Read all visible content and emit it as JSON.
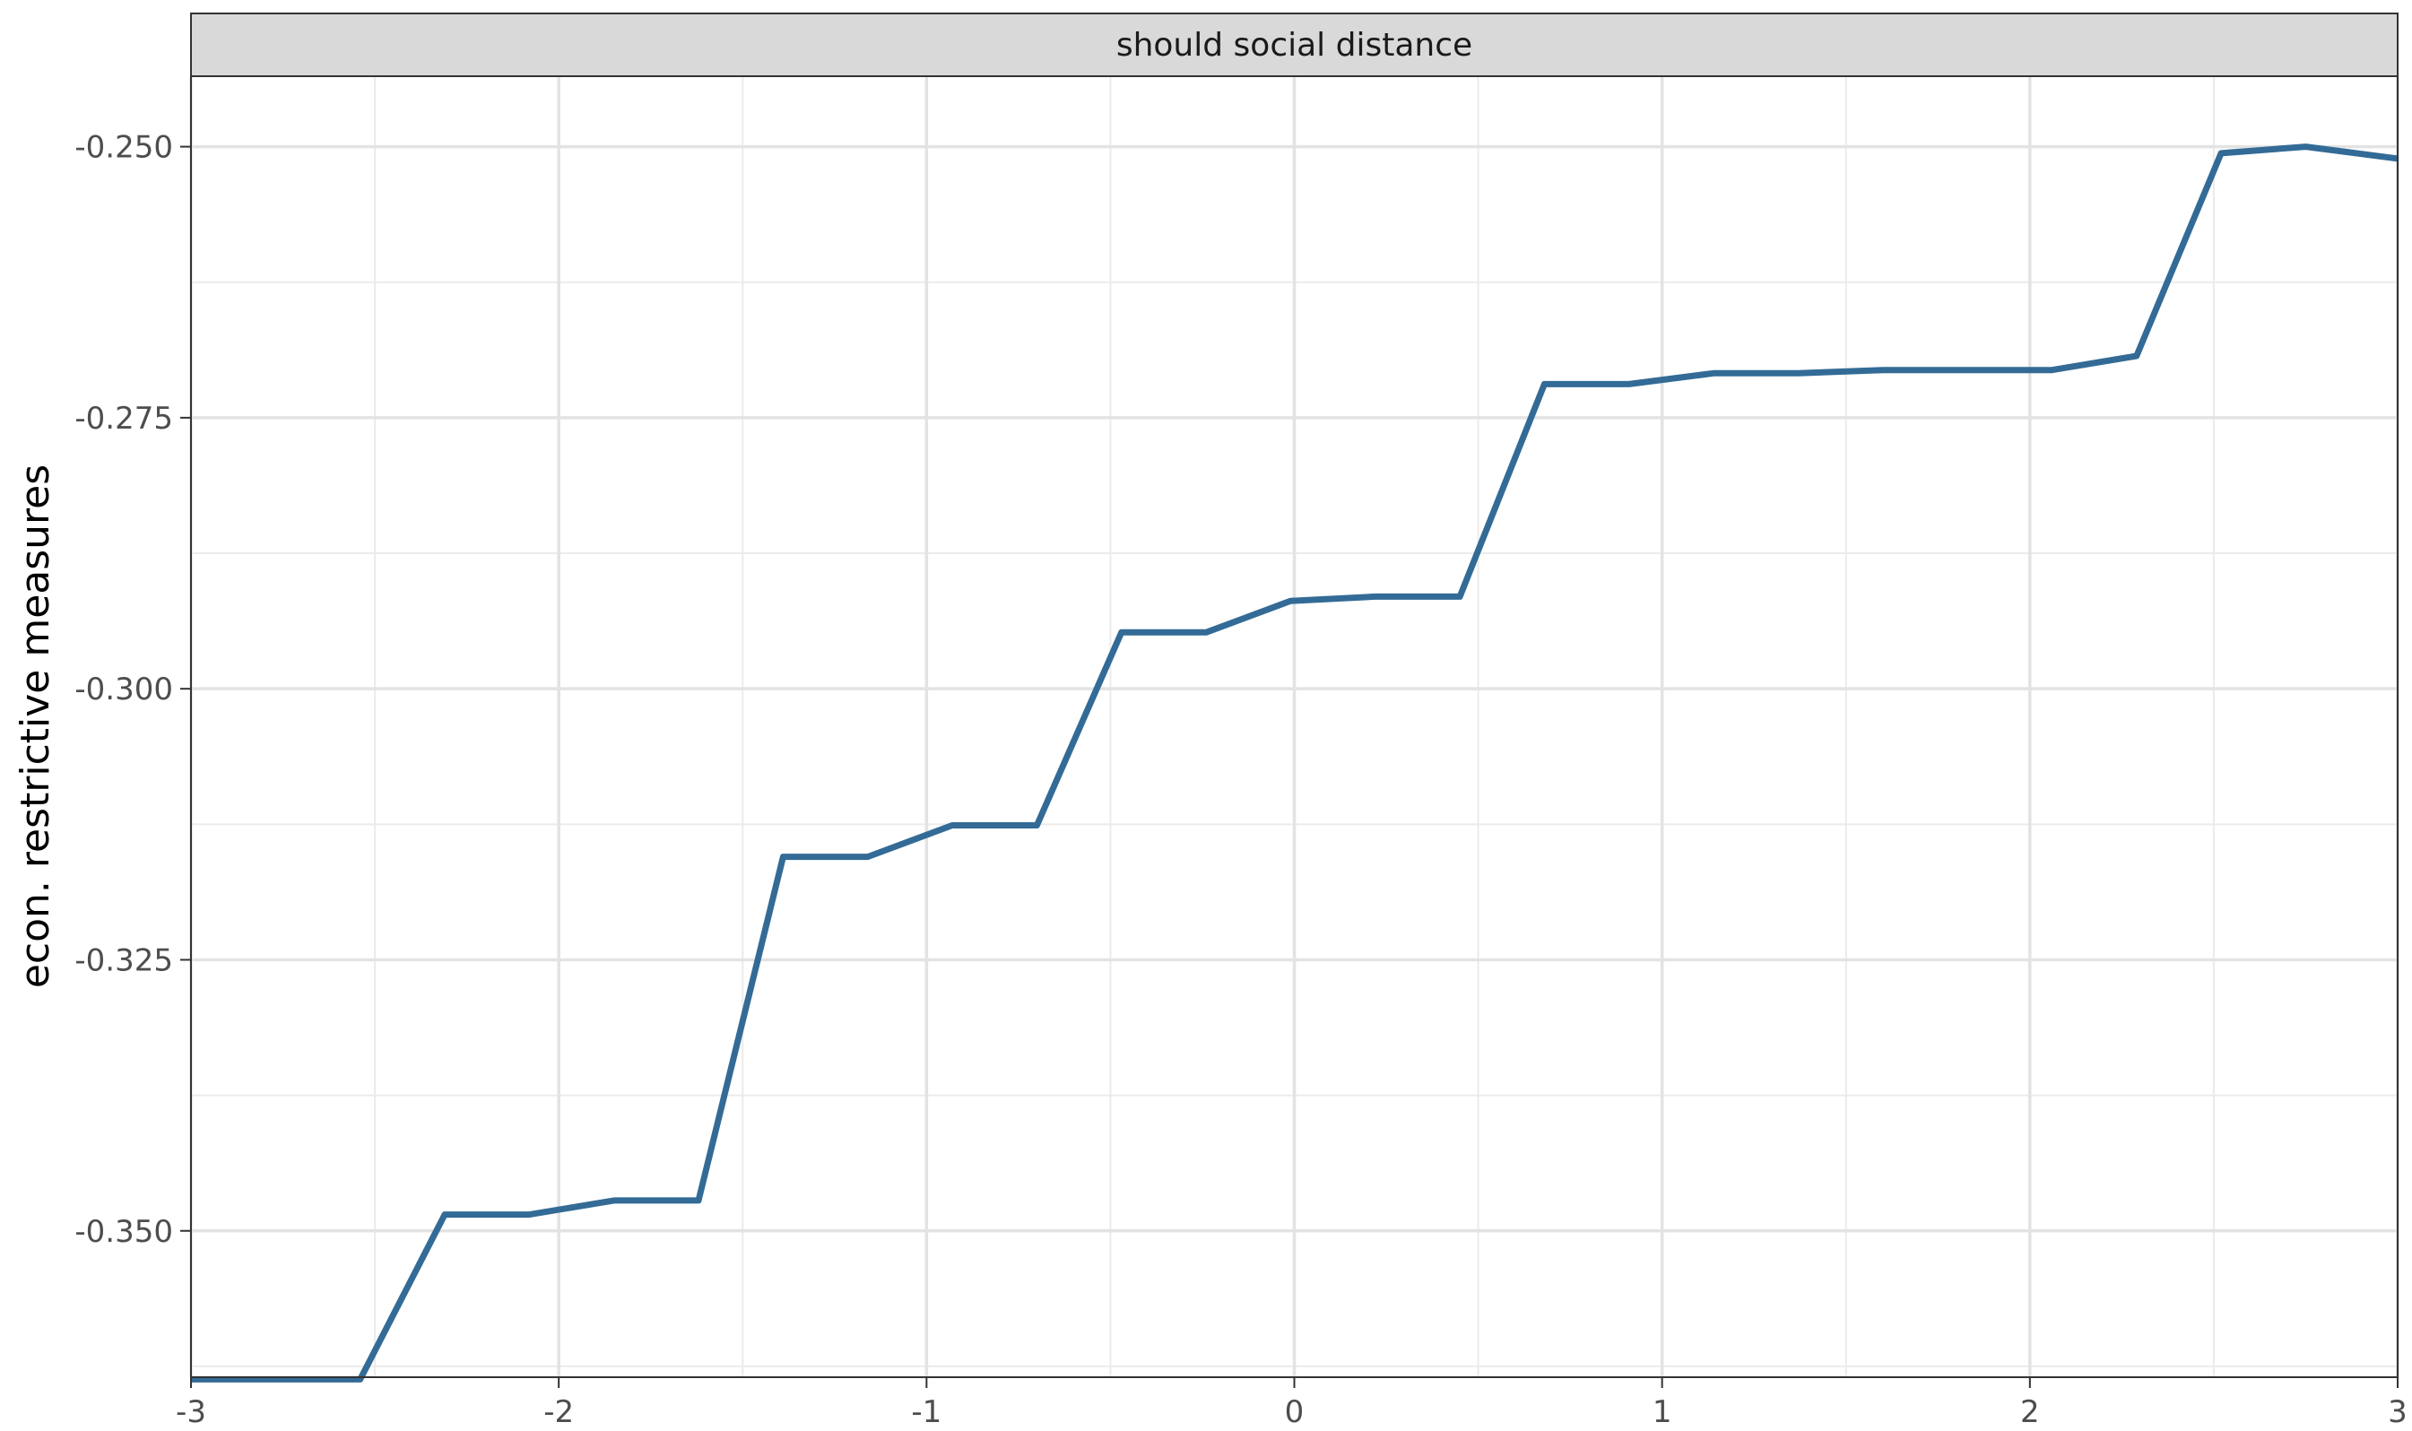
{
  "chart_data": {
    "type": "line",
    "title": "",
    "facet_label": "should social distance",
    "xlabel": "",
    "ylabel": "econ. restrictive measures",
    "xlim": [
      -3,
      3
    ],
    "ylim": [
      -0.3635,
      -0.2435
    ],
    "x_ticks": [
      -3,
      -2,
      -1,
      0,
      1,
      2,
      3
    ],
    "x_tick_labels": [
      "-3",
      "-2",
      "-1",
      "0",
      "1",
      "2",
      "3"
    ],
    "y_ticks": [
      -0.35,
      -0.325,
      -0.3,
      -0.275,
      -0.25
    ],
    "y_tick_labels": [
      "-0.350",
      "-0.325",
      "-0.300",
      "-0.275",
      "-0.250"
    ],
    "grid": true,
    "line_color": "#336b96",
    "series": [
      {
        "x": [
          -3.0,
          -2.54,
          -2.31,
          -2.08,
          -1.85,
          -1.62,
          -1.39,
          -1.16,
          -0.93,
          -0.7,
          -0.47,
          -0.24,
          -0.01,
          0.22,
          0.45,
          0.68,
          0.91,
          1.14,
          1.37,
          1.6,
          1.83,
          2.06,
          2.29,
          2.52,
          2.75,
          3.0
        ],
        "y": [
          -0.3637,
          -0.3637,
          -0.3485,
          -0.3485,
          -0.3472,
          -0.3472,
          -0.3155,
          -0.3155,
          -0.3126,
          -0.3126,
          -0.2948,
          -0.2948,
          -0.2919,
          -0.2915,
          -0.2915,
          -0.2719,
          -0.2719,
          -0.2709,
          -0.2709,
          -0.2706,
          -0.2706,
          -0.2706,
          -0.2693,
          -0.2506,
          -0.25,
          -0.2511
        ]
      }
    ]
  }
}
